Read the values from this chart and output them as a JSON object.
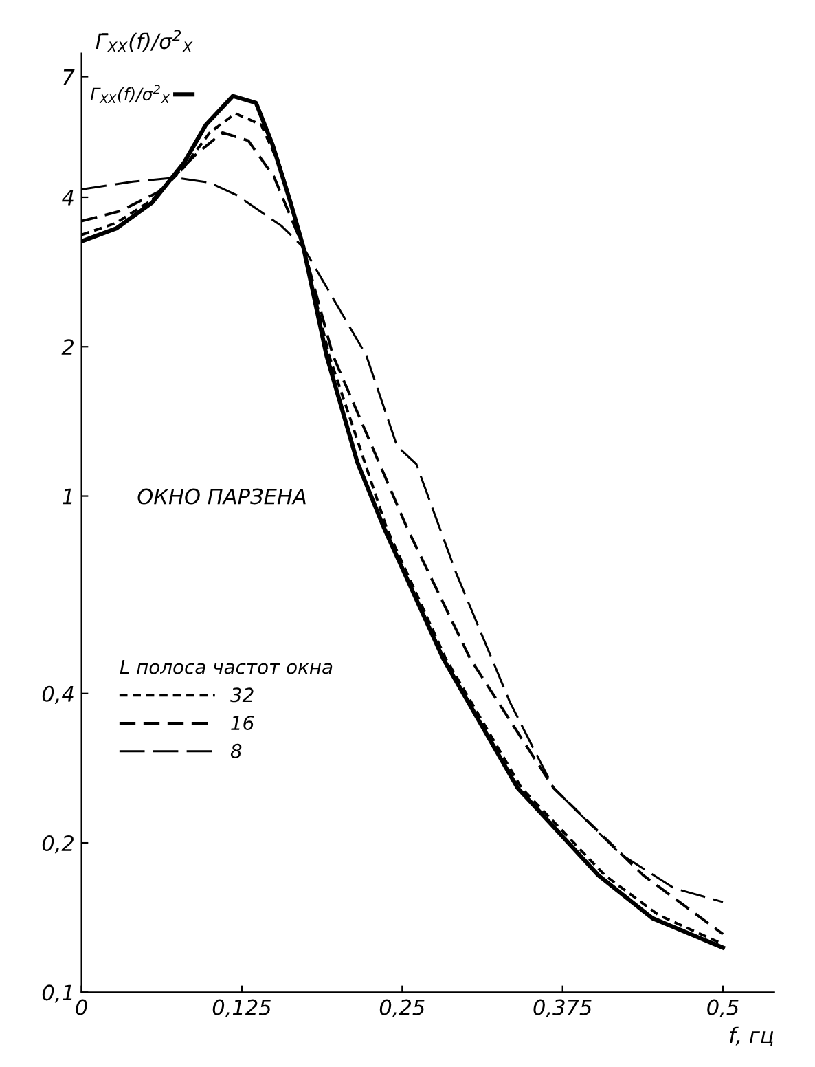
{
  "chart_data": {
    "type": "line",
    "log": "y",
    "ylabel": "Γ̄$_{XX}$(f)/σ$^{2}$$_{X}$",
    "xlabel": "f, гц",
    "legend_title": "L полоса частот окна",
    "legend": "left",
    "annotations": [
      "ОКНО ПАРЗЕНА"
    ],
    "xlim": [
      0,
      0.54
    ],
    "xticks": [
      0,
      {
        "value": 0.125,
        "label": "0,125"
      },
      {
        "value": 0.25,
        "label": "0,25"
      },
      {
        "value": 0.375,
        "label": "0,375"
      },
      {
        "value": 0.5,
        "label": "0,5"
      }
    ],
    "ylim": [
      0.1,
      7.8
    ],
    "yticks": [
      {
        "value": 0.1,
        "label": "0,1"
      },
      {
        "value": 0.2,
        "label": "0,2"
      },
      {
        "value": 0.4,
        "label": "0,4"
      },
      1,
      2,
      4,
      7
    ],
    "grid": false,
    "series": [
      {
        "name": "Γ$_{XX}$(f)/σ$^{2}$$_{X}$",
        "color": "#000000",
        "line_style": "solid",
        "x": [
          0,
          0.027,
          0.055,
          0.08,
          0.097,
          0.118,
          0.136,
          0.149,
          0.163,
          0.173,
          0.191,
          0.215,
          0.236,
          0.282,
          0.34,
          0.403,
          0.445,
          0.5
        ],
        "values": [
          3.26,
          3.46,
          3.9,
          4.7,
          5.6,
          6.4,
          6.2,
          5.1,
          3.9,
          3.17,
          1.92,
          1.17,
          0.86,
          0.47,
          0.258,
          0.172,
          0.141,
          0.123
        ]
      },
      {
        "name": "32",
        "color": "#000000",
        "line_style": "dotted",
        "x": [
          0,
          0.027,
          0.055,
          0.08,
          0.1,
          0.12,
          0.14,
          0.155,
          0.173,
          0.193,
          0.238,
          0.284,
          0.343,
          0.408,
          0.45,
          0.5
        ],
        "values": [
          3.36,
          3.55,
          3.95,
          4.6,
          5.4,
          5.9,
          5.6,
          4.6,
          3.17,
          1.92,
          0.86,
          0.47,
          0.258,
          0.172,
          0.143,
          0.125
        ]
      },
      {
        "name": "16",
        "color": "#000000",
        "line_style": "dashed",
        "x": [
          0,
          0.03,
          0.06,
          0.09,
          0.11,
          0.13,
          0.15,
          0.173,
          0.196,
          0.254,
          0.303,
          0.368,
          0.438,
          0.5
        ],
        "values": [
          3.58,
          3.75,
          4.1,
          4.9,
          5.4,
          5.2,
          4.4,
          3.17,
          1.92,
          0.86,
          0.47,
          0.258,
          0.172,
          0.131
        ]
      },
      {
        "name": "8",
        "color": "#000000",
        "line_style": "longdash",
        "x": [
          0,
          0.04,
          0.073,
          0.1,
          0.121,
          0.156,
          0.173,
          0.222,
          0.246,
          0.261,
          0.292,
          0.334,
          0.368,
          0.42,
          0.462,
          0.5
        ],
        "values": [
          4.15,
          4.3,
          4.38,
          4.28,
          4.04,
          3.5,
          3.17,
          1.92,
          1.26,
          1.16,
          0.7,
          0.384,
          0.258,
          0.19,
          0.162,
          0.152
        ]
      }
    ]
  }
}
